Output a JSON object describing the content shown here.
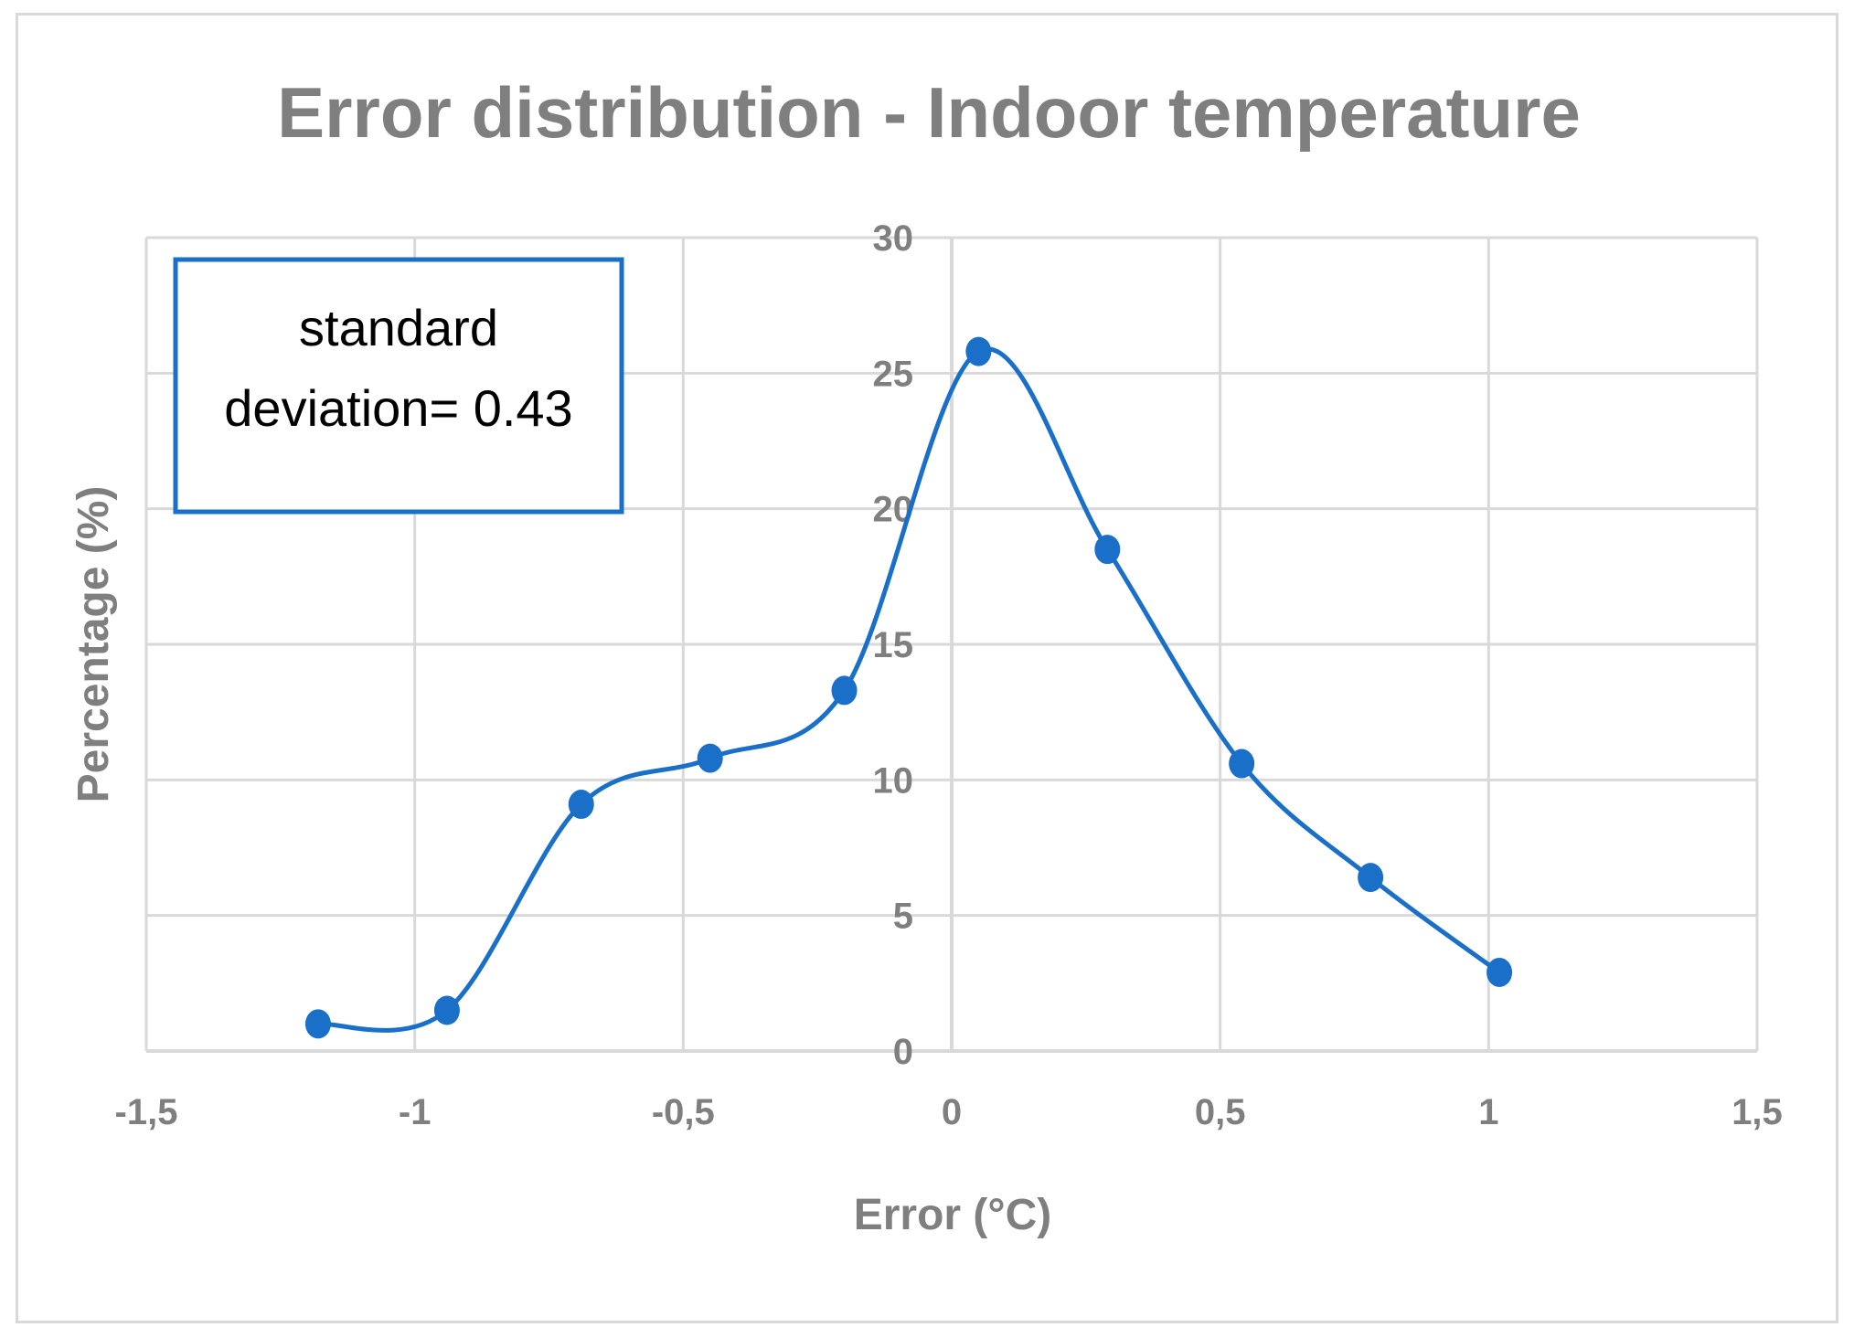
{
  "chart_data": {
    "type": "line",
    "title": "Error distribution - Indoor temperature",
    "xlabel": "Error (°C)",
    "ylabel": "Percentage  (%)",
    "xlim": [
      -1.5,
      1.5
    ],
    "ylim": [
      0,
      30
    ],
    "x_ticks": [
      -1.5,
      -1,
      -0.5,
      0,
      0.5,
      1,
      1.5
    ],
    "x_tick_labels": [
      "-1,5",
      "-1",
      "-0,5",
      "0",
      "0,5",
      "1",
      "1,5"
    ],
    "y_ticks": [
      0,
      5,
      10,
      15,
      20,
      25,
      30
    ],
    "y_tick_labels": [
      "0",
      "5",
      "10",
      "15",
      "20",
      "25",
      "30"
    ],
    "grid": true,
    "series": [
      {
        "color": "#1a6fc8",
        "smooth": true,
        "markers": true,
        "points": [
          {
            "x": -1.18,
            "y": 1.0
          },
          {
            "x": -0.94,
            "y": 1.5
          },
          {
            "x": -0.69,
            "y": 9.1
          },
          {
            "x": -0.45,
            "y": 10.8
          },
          {
            "x": -0.2,
            "y": 13.3
          },
          {
            "x": 0.05,
            "y": 25.8
          },
          {
            "x": 0.29,
            "y": 18.5
          },
          {
            "x": 0.54,
            "y": 10.6
          },
          {
            "x": 0.78,
            "y": 6.4
          },
          {
            "x": 1.02,
            "y": 2.9
          }
        ]
      }
    ],
    "annotation": {
      "lines": [
        "standard",
        "deviation= 0.43"
      ],
      "border_color": "#1a6fc8",
      "position": "top-left"
    },
    "colors": {
      "grid": "#d9d9d9",
      "axis_text": "#7f7f7f",
      "frame": "#d9d9d9"
    }
  }
}
